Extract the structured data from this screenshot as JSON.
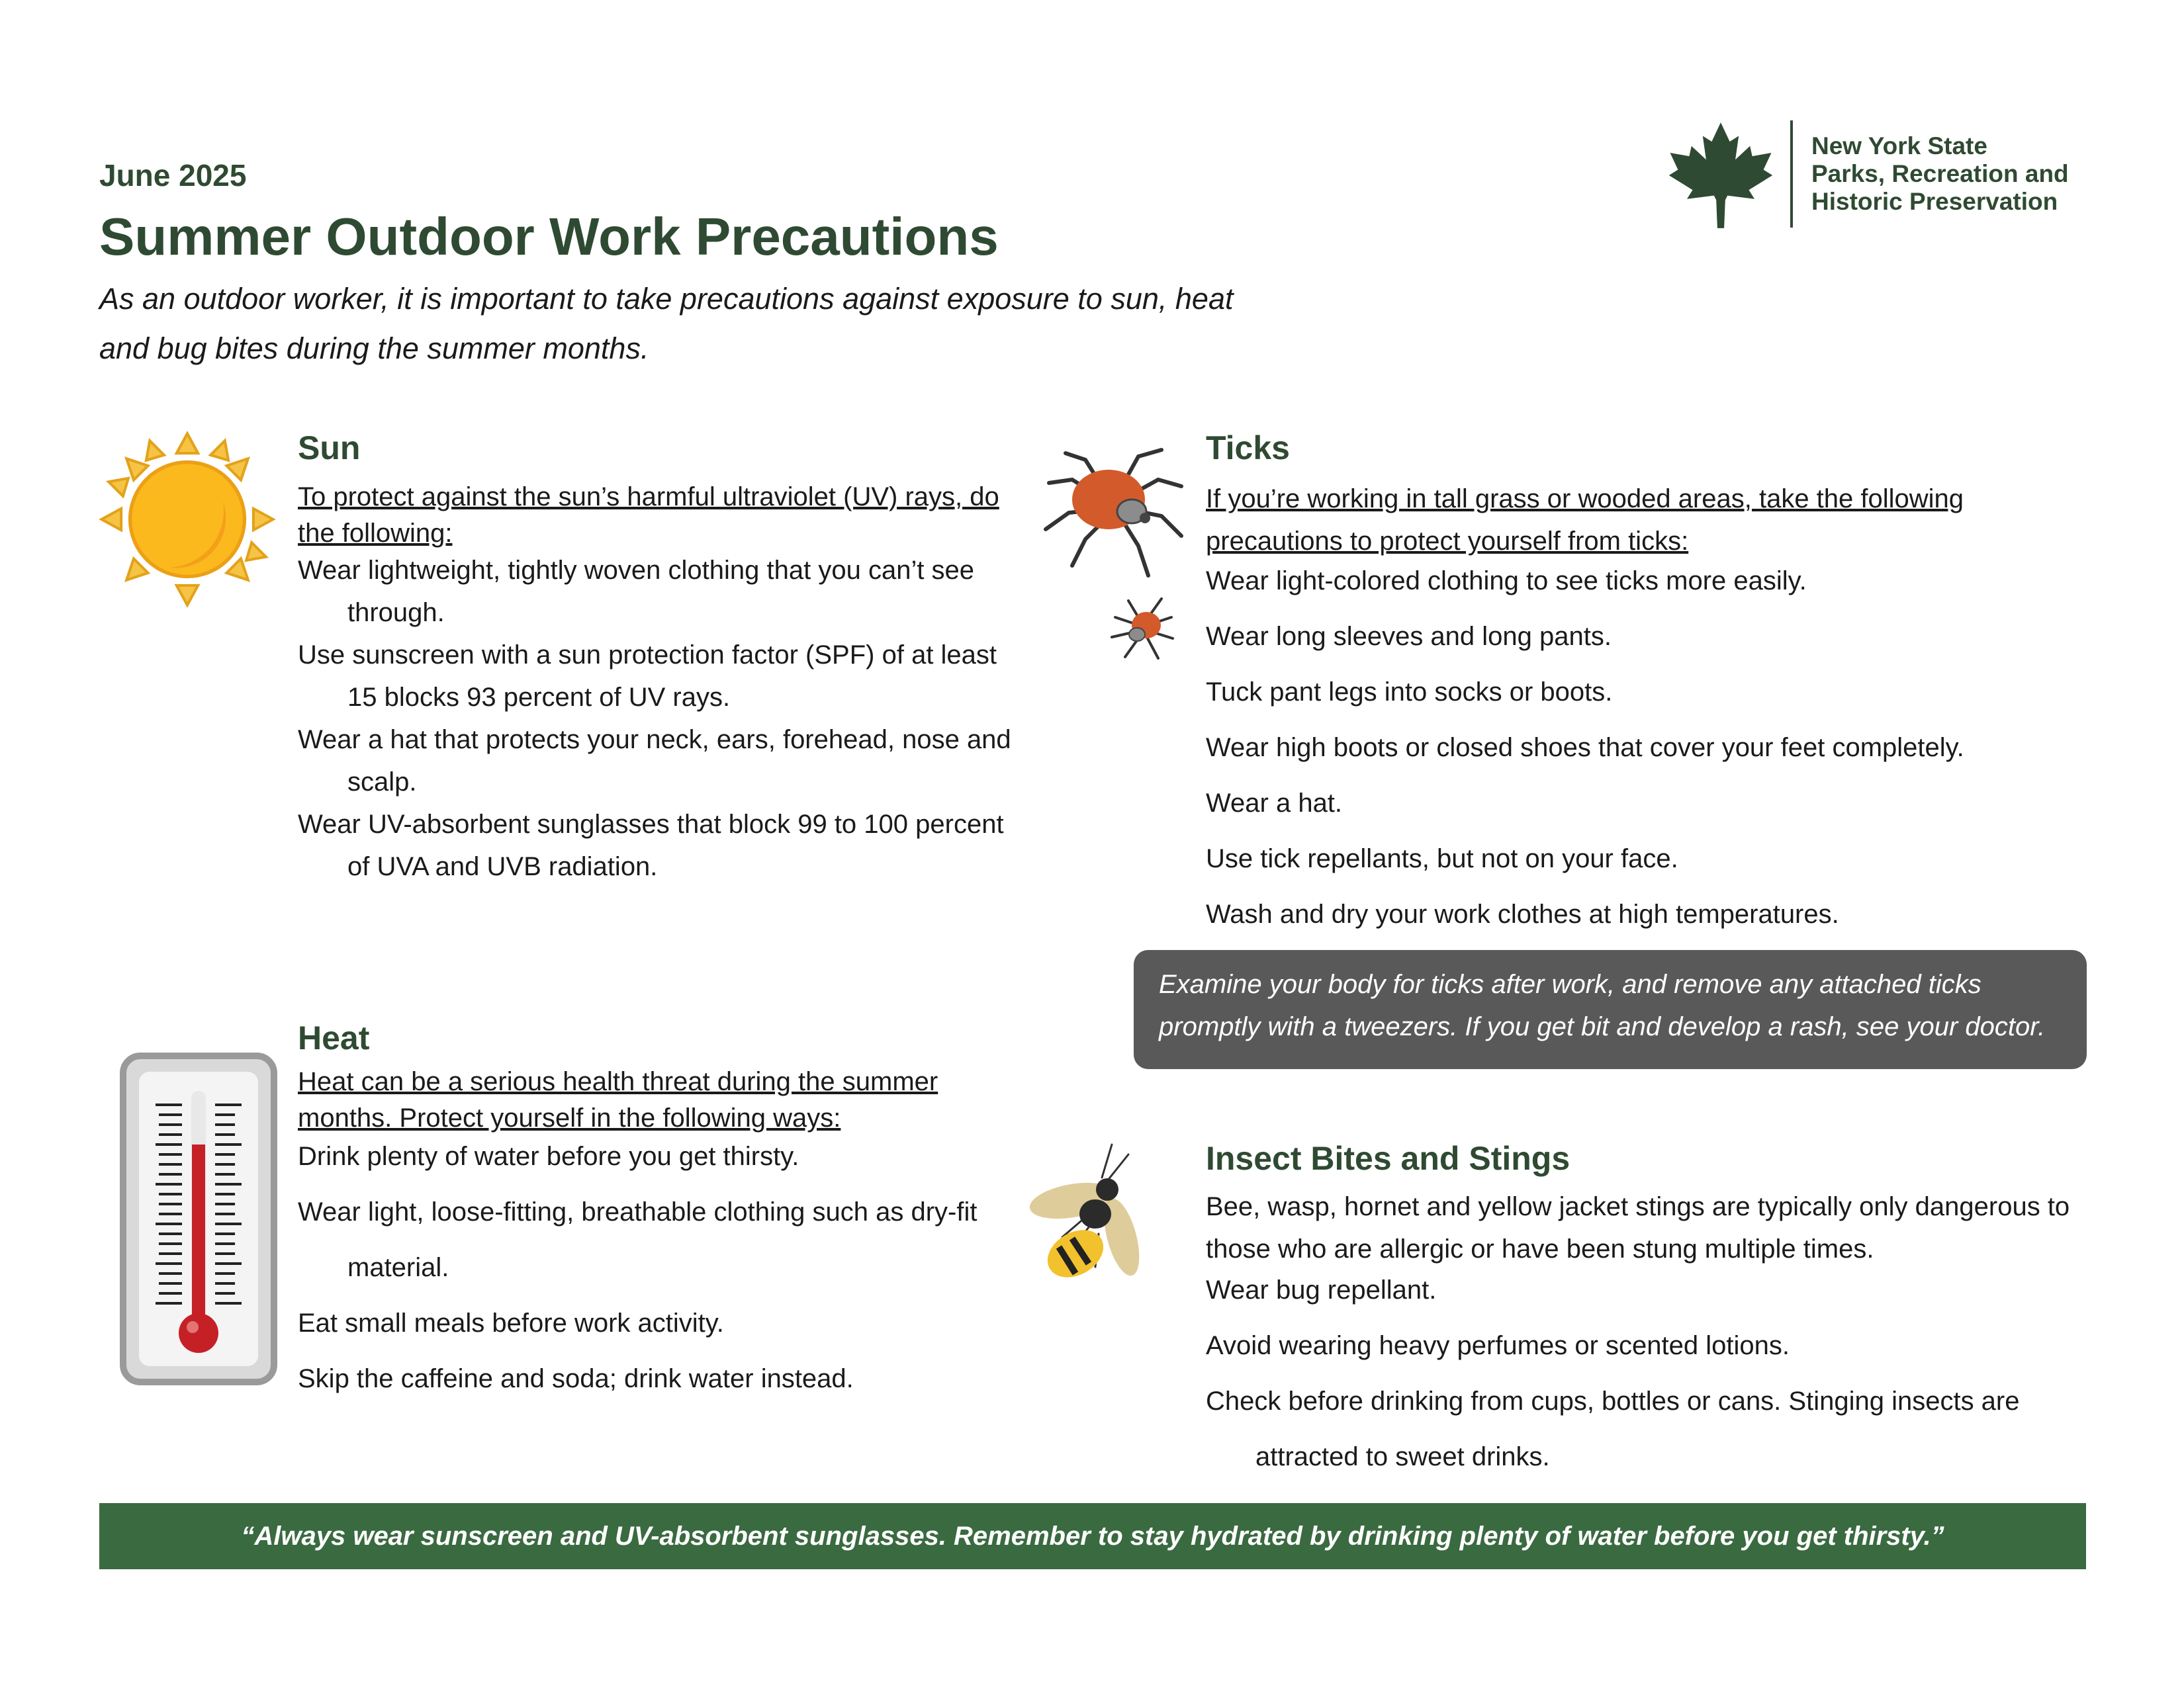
{
  "header": {
    "date": "June 2025",
    "title": "Summer Outdoor Work Precautions",
    "intro": "As an outdoor worker, it is important to take precautions against exposure to sun, heat and bug bites during the summer months."
  },
  "logo": {
    "text": "New York State\nParks, Recreation and\nHistoric Preservation",
    "icon": "maple-leaf-icon",
    "color": "#2f4a32"
  },
  "sun": {
    "title": "Sun",
    "lead": "To protect against the sun’s harmful ultraviolet (UV) rays, do the following:",
    "items": [
      "Wear lightweight, tightly woven clothing that you can’t see through.",
      "Use sunscreen with a sun protection factor (SPF) of at least 15 blocks 93 percent of UV rays.",
      "Wear a hat that protects your neck, ears, forehead, nose and scalp.",
      "Wear UV-absorbent sunglasses that block 99 to 100 percent of UVA and UVB radiation."
    ],
    "icon": "sun-icon"
  },
  "heat": {
    "title": "Heat",
    "lead": "Heat can be a serious health threat during the summer months. Protect yourself in the following ways:",
    "items": [
      "Drink plenty of water before you get thirsty.",
      "Wear light, loose-fitting, breathable clothing such as dry-fit material.",
      "Eat small meals before work activity.",
      "Skip the caffeine and soda; drink water instead."
    ],
    "icon": "thermometer-icon"
  },
  "ticks": {
    "title": "Ticks",
    "lead": "If you’re working in tall grass or wooded areas, take the following precautions to protect yourself from ticks:",
    "items": [
      "Wear light-colored clothing to see ticks more easily.",
      "Wear long sleeves and long pants.",
      "Tuck pant legs into socks or boots.",
      "Wear high boots or closed shoes that cover your feet completely.",
      "Wear a hat.",
      "Use tick repellants, but not on your face.",
      "Wash and dry your work clothes at high temperatures."
    ],
    "callout": "Examine your body for ticks after work, and remove any attached ticks promptly with a tweezers. If you get bit and develop a rash, see your doctor.",
    "icon": "tick-icon"
  },
  "insects": {
    "title": "Insect Bites and Stings",
    "lead": "Bee, wasp, hornet and yellow jacket stings are typically only dangerous to those who are allergic or have been stung multiple times.",
    "items": [
      "Wear bug repellant.",
      "Avoid wearing heavy perfumes or scented lotions.",
      "Check before drinking from cups, bottles or cans. Stinging insects are attracted to sweet drinks."
    ],
    "icon": "wasp-icon"
  },
  "footer": {
    "quote": "“Always wear sunscreen and UV-absorbent sunglasses. Remember to stay hydrated by drinking plenty of water before you get thirsty.”",
    "color": "#3a6a40"
  }
}
